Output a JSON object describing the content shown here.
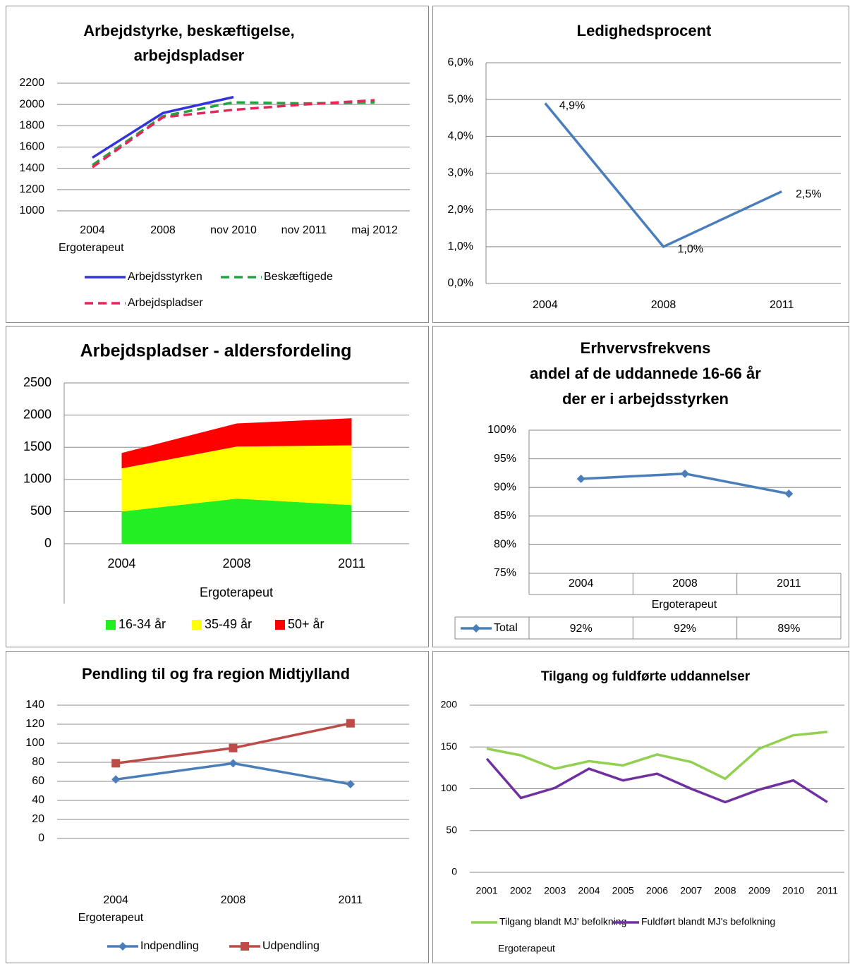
{
  "chart_data": [
    {
      "type": "line",
      "title": [
        "Arbejdstyrke, beskæftigelse,",
        "arbejdspladser"
      ],
      "xlabel": "Ergoterapeut",
      "categories": [
        "2004",
        "2008",
        "nov 2010",
        "nov 2011",
        "maj 2012"
      ],
      "series": [
        {
          "name": "Arbejdsstyrken",
          "color": "#3333dd",
          "dashed": false,
          "values": [
            1500,
            1920,
            2070,
            null,
            null
          ]
        },
        {
          "name": "Beskæftigede",
          "color": "#21a542",
          "dashed": true,
          "values": [
            1430,
            1890,
            2020,
            2010,
            2020
          ]
        },
        {
          "name": "Arbejdspladser",
          "color": "#e8255a",
          "dashed": true,
          "values": [
            1410,
            1880,
            1950,
            2000,
            2040
          ]
        }
      ],
      "ylim": [
        1000,
        2200
      ],
      "yticks": [
        1000,
        1200,
        1400,
        1600,
        1800,
        2000,
        2200
      ],
      "grid": true,
      "legend": "bottom"
    },
    {
      "type": "line",
      "title": "Ledighedsprocent",
      "categories": [
        "2004",
        "2008",
        "2011"
      ],
      "series": [
        {
          "color": "#4a7ebb",
          "values": [
            4.9,
            1.0,
            2.5
          ],
          "value_labels": [
            "4,9%",
            "1,0%",
            "2,5%"
          ]
        }
      ],
      "ylim": [
        0,
        6
      ],
      "yticks": [
        {
          "value": 0,
          "label": "0,0%"
        },
        {
          "value": 1,
          "label": "1,0%"
        },
        {
          "value": 2,
          "label": "2,0%"
        },
        {
          "value": 3,
          "label": "3,0%"
        },
        {
          "value": 4,
          "label": "4,0%"
        },
        {
          "value": 5,
          "label": "5,0%"
        },
        {
          "value": 6,
          "label": "6,0%"
        }
      ],
      "grid": true
    },
    {
      "type": "area",
      "title": "Arbejdspladser - aldersfordeling",
      "xlabel": "Ergoterapeut",
      "categories": [
        "2004",
        "2008",
        "2011"
      ],
      "series": [
        {
          "name": "16-34 år",
          "color": "#22ee22",
          "values": [
            500,
            700,
            600
          ]
        },
        {
          "name": "35-49 år",
          "color": "#ffff00",
          "values": [
            670,
            810,
            930
          ]
        },
        {
          "name": "50+ år",
          "color": "#ff0000",
          "values": [
            240,
            360,
            420
          ]
        }
      ],
      "ylim": [
        0,
        2500
      ],
      "yticks": [
        0,
        500,
        1000,
        1500,
        2000,
        2500
      ],
      "grid": true,
      "legend": "bottom"
    },
    {
      "type": "line",
      "title": [
        "Erhvervsfrekvens",
        "andel af de uddannede 16-66 år",
        "der er i arbejdsstyrken"
      ],
      "xlabel": "Ergoterapeut",
      "categories": [
        "2004",
        "2008",
        "2011"
      ],
      "series": [
        {
          "name": "Total",
          "color": "#4a7ebb",
          "marker": "diamond",
          "values": [
            91.5,
            92.4,
            88.9
          ],
          "value_labels": [
            "92%",
            "92%",
            "89%"
          ]
        }
      ],
      "ylim": [
        75,
        100
      ],
      "yticks": [
        {
          "value": 75,
          "label": "75%"
        },
        {
          "value": 80,
          "label": "80%"
        },
        {
          "value": 85,
          "label": "85%"
        },
        {
          "value": 90,
          "label": "90%"
        },
        {
          "value": 95,
          "label": "95%"
        },
        {
          "value": 100,
          "label": "100%"
        }
      ],
      "grid": true,
      "data_table": true
    },
    {
      "type": "line",
      "title": "Pendling til og fra region Midtjylland",
      "xlabel": "Ergoterapeut",
      "categories": [
        "2004",
        "2008",
        "2011"
      ],
      "series": [
        {
          "name": "Indpendling",
          "color": "#4a7ebb",
          "marker": "diamond",
          "values": [
            62,
            79,
            57
          ]
        },
        {
          "name": "Udpendling",
          "color": "#be4b48",
          "marker": "square",
          "values": [
            79,
            95,
            121
          ]
        }
      ],
      "ylim": [
        0,
        140
      ],
      "yticks": [
        0,
        20,
        40,
        60,
        80,
        100,
        120,
        140
      ],
      "grid": true,
      "legend": "bottom"
    },
    {
      "type": "line",
      "title": "Tilgang og fuldførte uddannelser",
      "xlabel": "Ergoterapeut",
      "categories": [
        "2001",
        "2002",
        "2003",
        "2004",
        "2005",
        "2006",
        "2007",
        "2008",
        "2009",
        "2010",
        "2011"
      ],
      "series": [
        {
          "name": "Tilgang blandt MJ' befolkning",
          "color": "#92d050",
          "values": [
            148,
            140,
            124,
            133,
            128,
            141,
            132,
            112,
            148,
            164,
            168
          ]
        },
        {
          "name": "Fuldført blandt MJ's befolkning",
          "color": "#7030a0",
          "values": [
            136,
            89,
            101,
            124,
            110,
            118,
            100,
            84,
            99,
            110,
            84
          ]
        }
      ],
      "ylim": [
        0,
        200
      ],
      "yticks": [
        0,
        50,
        100,
        150,
        200
      ],
      "grid": true,
      "legend": "bottom"
    }
  ]
}
